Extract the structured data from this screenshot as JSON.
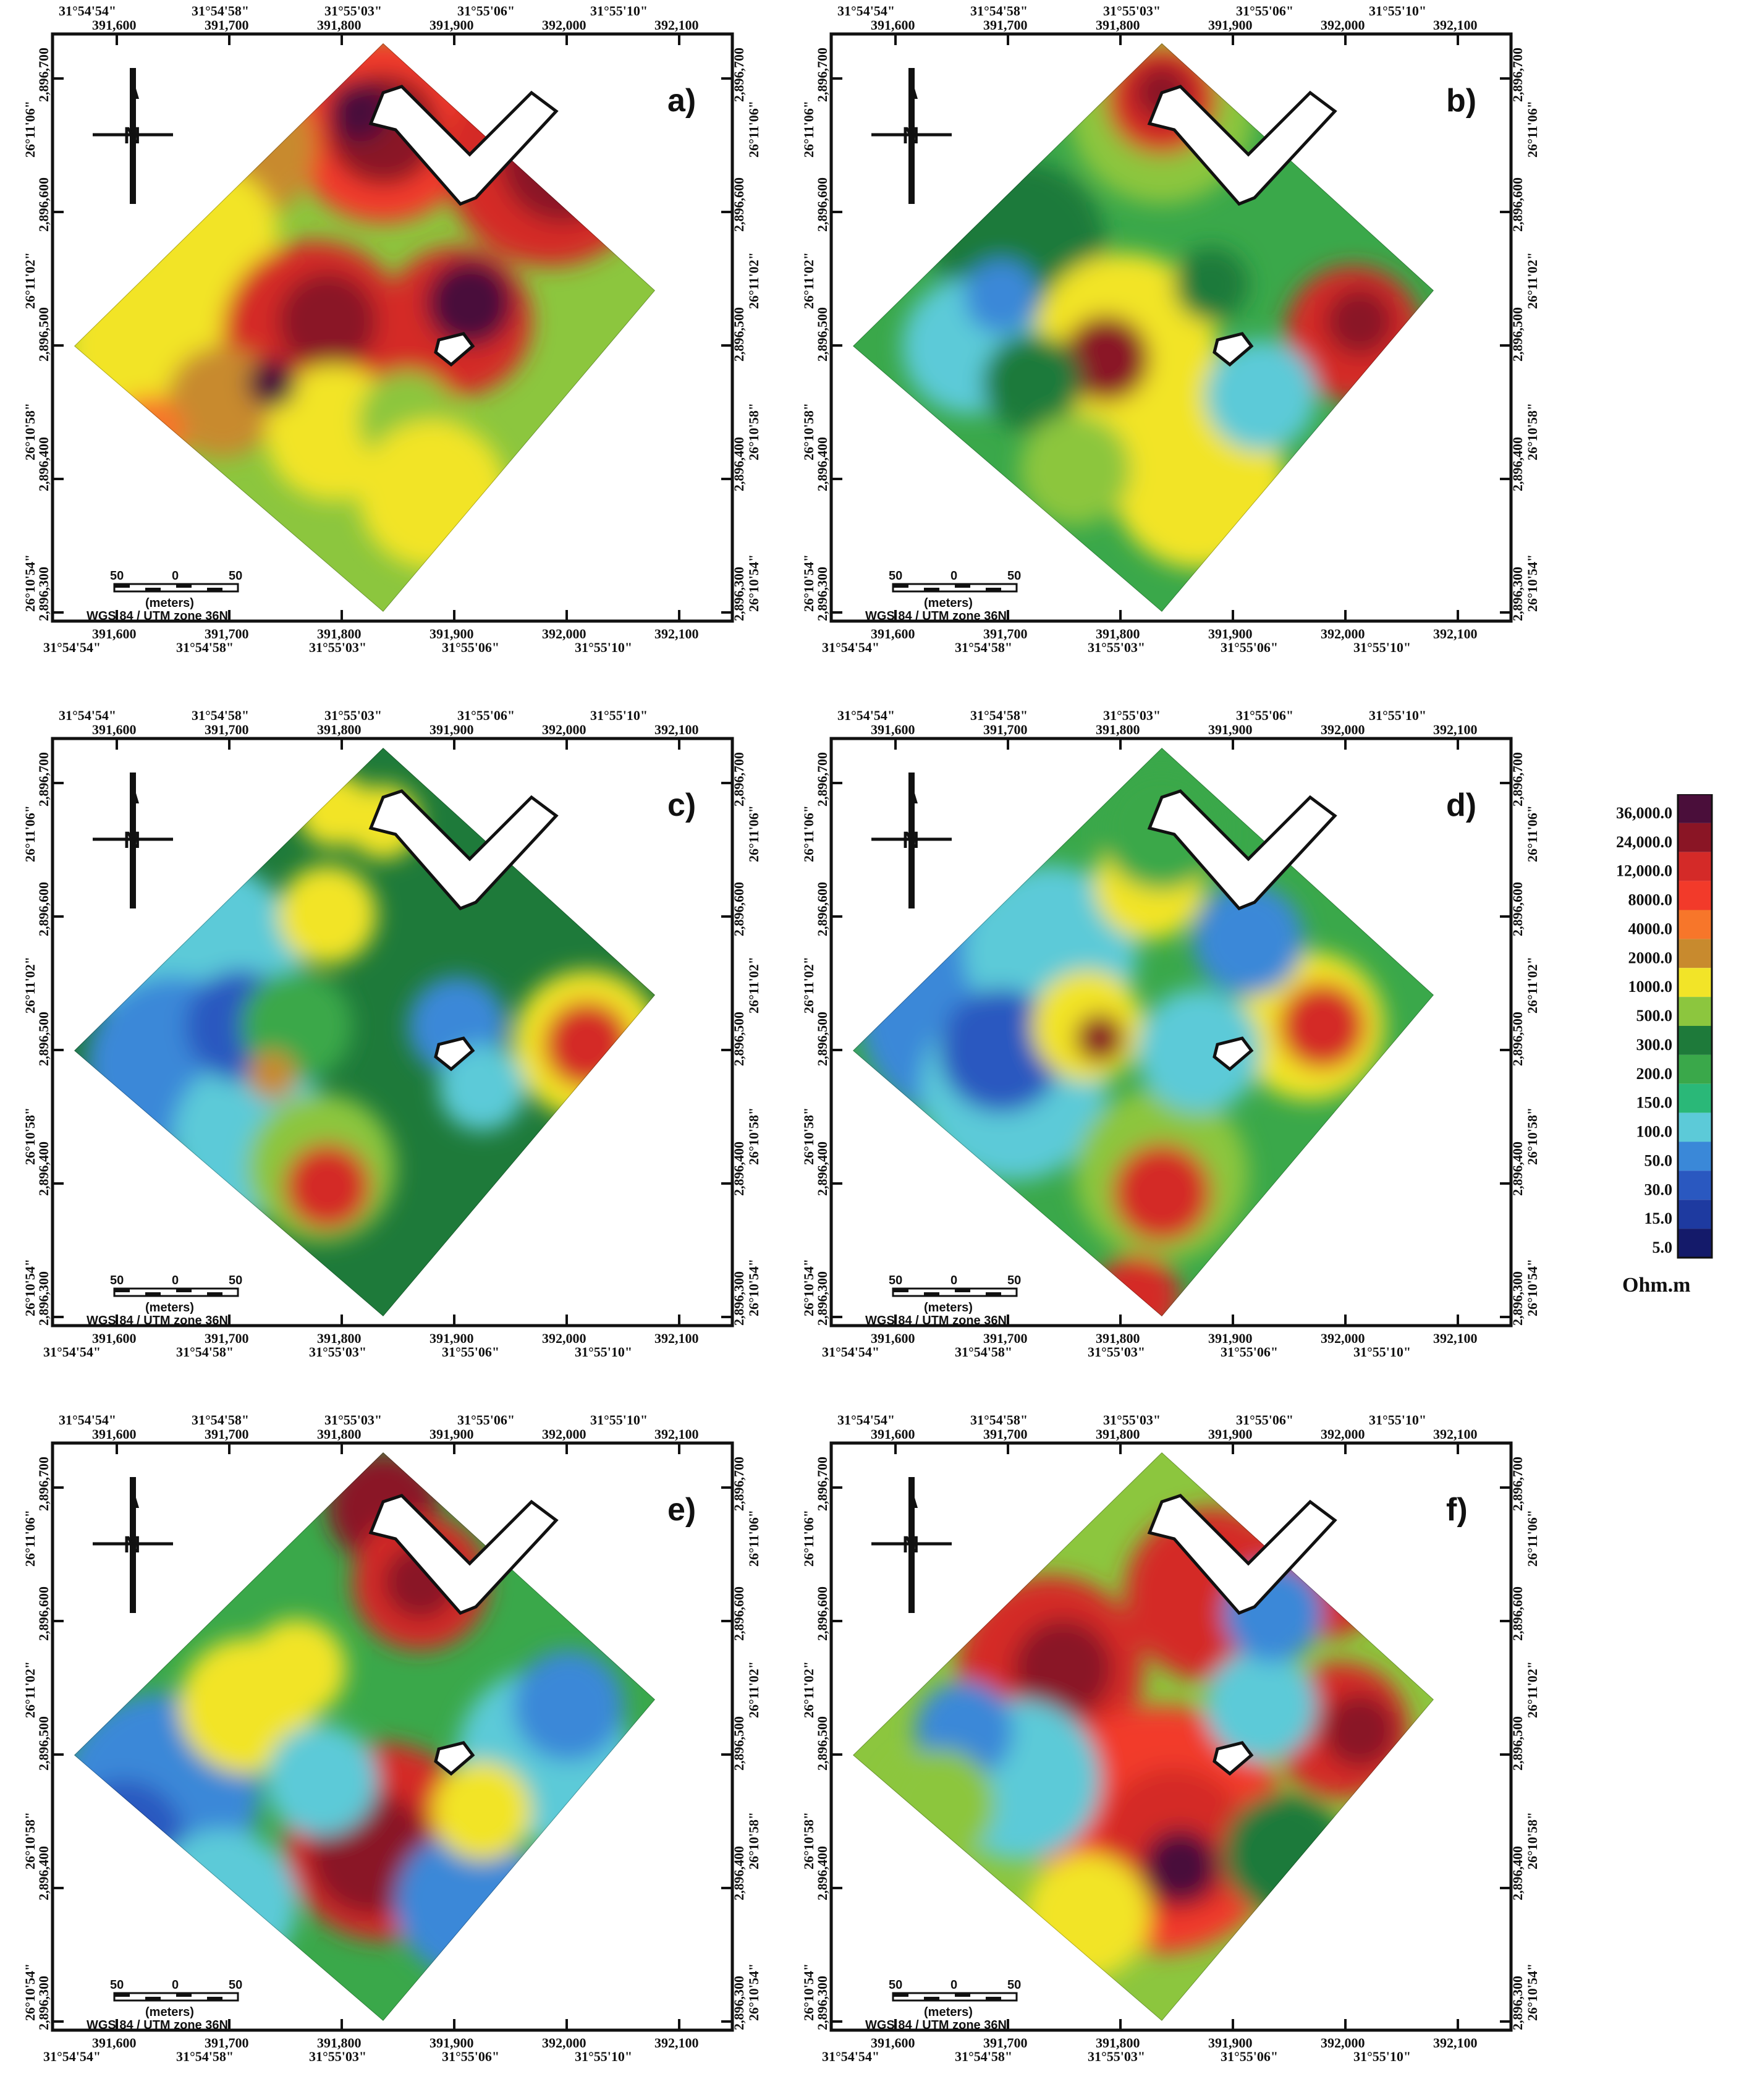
{
  "panels": [
    {
      "label": "a)",
      "id": "a"
    },
    {
      "label": "b)",
      "id": "b"
    },
    {
      "label": "c)",
      "id": "c"
    },
    {
      "label": "d)",
      "id": "d"
    },
    {
      "label": "e)",
      "id": "e"
    },
    {
      "label": "f)",
      "id": "f"
    }
  ],
  "axes": {
    "top_dms": [
      "31°54'54\"",
      "31°54'58\"",
      "31°55'03\"",
      "31°55'06\"",
      "31°55'10\""
    ],
    "easting": [
      "391,600",
      "391,700",
      "391,800",
      "391,900",
      "392,000",
      "392,100"
    ],
    "bottom_dms": [
      "31°54'54\"",
      "31°54'58\"",
      "31°55'03\"",
      "31°55'06\"",
      "31°55'10\""
    ],
    "northing": [
      "2,896,700",
      "2,896,600",
      "2,896,500",
      "2,896,400",
      "2,896,300"
    ],
    "lat_dms": [
      "26°11'06\"",
      "26°11'02\"",
      "26°10'58\"",
      "26°10'54\""
    ]
  },
  "scale_bar": {
    "left": "50",
    "mid": "0",
    "right": "50",
    "unit": "(meters)"
  },
  "projection": "WGS 84 / UTM zone 36N",
  "north_label": "N",
  "legend": {
    "unit": "Ohm.m",
    "values": [
      "36,000.0",
      "24,000.0",
      "12,000.0",
      "8000.0",
      "4000.0",
      "2000.0",
      "1000.0",
      "500.0",
      "300.0",
      "200.0",
      "150.0",
      "100.0",
      "50.0",
      "30.0",
      "15.0",
      "5.0"
    ],
    "colors": [
      "#4a0e3a",
      "#8a1525",
      "#d42a28",
      "#f23a2a",
      "#f7762a",
      "#c88a2e",
      "#f2e428",
      "#8cc63e",
      "#1e7a3a",
      "#3aa84a",
      "#2ab878",
      "#5ccad8",
      "#3a88d8",
      "#2a58c0",
      "#1e3aa0",
      "#141a6a"
    ]
  },
  "colors": {
    "label_magenta": "#d0179b",
    "frame": "#111111"
  }
}
